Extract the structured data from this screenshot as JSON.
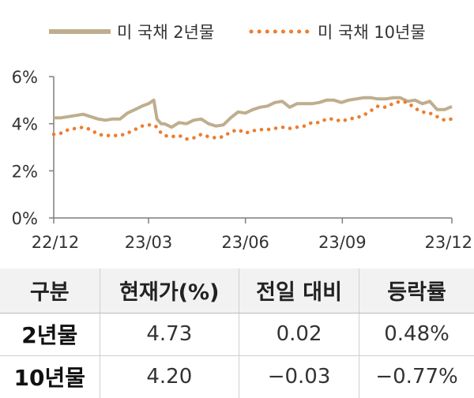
{
  "chart_data": {
    "type": "line",
    "x_ticks": [
      "22/12",
      "23/03",
      "23/06",
      "23/09",
      "23/12"
    ],
    "y_ticks": [
      "0%",
      "2%",
      "4%",
      "6%"
    ],
    "ylim": [
      0,
      6
    ],
    "grid": false,
    "legend_position": "top",
    "series": [
      {
        "name": "미 국채 2년물",
        "color": "#bfae8e",
        "style": "solid",
        "x": [
          "2022-12-01",
          "2022-12-08",
          "2022-12-15",
          "2022-12-22",
          "2022-12-29",
          "2023-01-05",
          "2023-01-12",
          "2023-01-19",
          "2023-01-26",
          "2023-02-02",
          "2023-02-09",
          "2023-02-16",
          "2023-02-23",
          "2023-03-01",
          "2023-03-06",
          "2023-03-09",
          "2023-03-13",
          "2023-03-16",
          "2023-03-23",
          "2023-03-30",
          "2023-04-06",
          "2023-04-13",
          "2023-04-20",
          "2023-04-27",
          "2023-05-04",
          "2023-05-11",
          "2023-05-18",
          "2023-05-25",
          "2023-06-01",
          "2023-06-08",
          "2023-06-15",
          "2023-06-22",
          "2023-06-29",
          "2023-07-06",
          "2023-07-13",
          "2023-07-20",
          "2023-07-27",
          "2023-08-03",
          "2023-08-10",
          "2023-08-17",
          "2023-08-24",
          "2023-08-31",
          "2023-09-07",
          "2023-09-14",
          "2023-09-21",
          "2023-09-28",
          "2023-10-05",
          "2023-10-12",
          "2023-10-19",
          "2023-10-26",
          "2023-11-02",
          "2023-11-09",
          "2023-11-16",
          "2023-11-23",
          "2023-11-30",
          "2023-12-07",
          "2023-12-14"
        ],
        "values": [
          4.25,
          4.25,
          4.3,
          4.35,
          4.4,
          4.3,
          4.2,
          4.15,
          4.2,
          4.2,
          4.45,
          4.6,
          4.75,
          4.85,
          5.0,
          4.2,
          4.0,
          4.0,
          3.85,
          4.05,
          4.0,
          4.15,
          4.2,
          4.0,
          3.9,
          3.95,
          4.25,
          4.5,
          4.45,
          4.6,
          4.7,
          4.75,
          4.9,
          4.95,
          4.7,
          4.85,
          4.85,
          4.85,
          4.9,
          5.0,
          5.0,
          4.9,
          5.0,
          5.05,
          5.1,
          5.1,
          5.05,
          5.05,
          5.1,
          5.1,
          4.95,
          5.0,
          4.85,
          4.95,
          4.6,
          4.6,
          4.73
        ]
      },
      {
        "name": "미 국채 10년물",
        "color": "#ed7d31",
        "style": "dotted",
        "x": [
          "2022-12-01",
          "2022-12-08",
          "2022-12-15",
          "2022-12-22",
          "2022-12-29",
          "2023-01-05",
          "2023-01-12",
          "2023-01-19",
          "2023-01-26",
          "2023-02-02",
          "2023-02-09",
          "2023-02-16",
          "2023-02-23",
          "2023-03-01",
          "2023-03-06",
          "2023-03-09",
          "2023-03-13",
          "2023-03-16",
          "2023-03-23",
          "2023-03-30",
          "2023-04-06",
          "2023-04-13",
          "2023-04-20",
          "2023-04-27",
          "2023-05-04",
          "2023-05-11",
          "2023-05-18",
          "2023-05-25",
          "2023-06-01",
          "2023-06-08",
          "2023-06-15",
          "2023-06-22",
          "2023-06-29",
          "2023-07-06",
          "2023-07-13",
          "2023-07-20",
          "2023-07-27",
          "2023-08-03",
          "2023-08-10",
          "2023-08-17",
          "2023-08-24",
          "2023-08-31",
          "2023-09-07",
          "2023-09-14",
          "2023-09-21",
          "2023-09-28",
          "2023-10-05",
          "2023-10-12",
          "2023-10-19",
          "2023-10-26",
          "2023-11-02",
          "2023-11-09",
          "2023-11-16",
          "2023-11-23",
          "2023-11-30",
          "2023-12-07",
          "2023-12-14"
        ],
        "values": [
          3.55,
          3.6,
          3.75,
          3.8,
          3.85,
          3.75,
          3.55,
          3.5,
          3.5,
          3.5,
          3.6,
          3.75,
          3.9,
          3.95,
          3.95,
          3.85,
          3.6,
          3.5,
          3.45,
          3.5,
          3.35,
          3.4,
          3.55,
          3.45,
          3.4,
          3.45,
          3.65,
          3.75,
          3.6,
          3.7,
          3.75,
          3.75,
          3.8,
          3.85,
          3.8,
          3.85,
          3.9,
          4.05,
          4.05,
          4.2,
          4.2,
          4.1,
          4.2,
          4.25,
          4.35,
          4.55,
          4.75,
          4.7,
          4.85,
          4.95,
          4.9,
          4.65,
          4.5,
          4.45,
          4.3,
          4.15,
          4.2
        ]
      }
    ]
  },
  "table": {
    "headers": [
      "구분",
      "현재가(%)",
      "전일 대비",
      "등락률"
    ],
    "rows": [
      {
        "label": "2년물",
        "price": "4.73",
        "change": "0.02",
        "rate": "0.48%"
      },
      {
        "label": "10년물",
        "price": "4.20",
        "change": "−0.03",
        "rate": "−0.77%"
      }
    ]
  }
}
